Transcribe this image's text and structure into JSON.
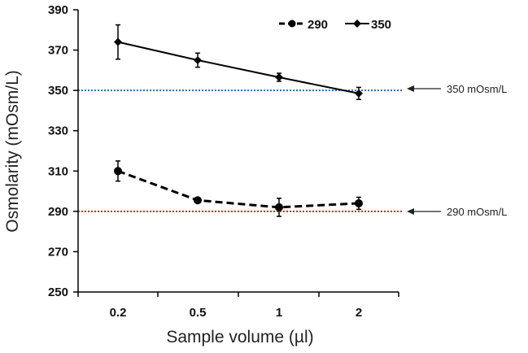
{
  "chart_data": {
    "type": "line",
    "title": "",
    "xlabel": "Sample volume (µl)",
    "ylabel": "Osmolarity (mOsm/L)",
    "categories": [
      "0.2",
      "0.5",
      "1",
      "2"
    ],
    "ylim": [
      250,
      390
    ],
    "yticks": [
      "250",
      "270",
      "290",
      "310",
      "330",
      "350",
      "370",
      "390"
    ],
    "legend_position": "top-right",
    "series": [
      {
        "name": "290",
        "style": "dashed",
        "marker": "circle",
        "color": "#000000",
        "values": [
          310,
          295.5,
          292,
          294
        ],
        "errors": [
          5,
          1,
          4.5,
          3
        ]
      },
      {
        "name": "350",
        "style": "solid",
        "marker": "diamond",
        "color": "#000000",
        "values": [
          374,
          365,
          356.5,
          348.5
        ],
        "errors": [
          8.5,
          3.5,
          2,
          3
        ]
      }
    ],
    "reference_lines": [
      {
        "value": 350,
        "label": "350 mOsm/L",
        "color": "#1f6fc4"
      },
      {
        "value": 290,
        "label": "290 mOsm/L",
        "color": "#e0201a"
      }
    ]
  }
}
